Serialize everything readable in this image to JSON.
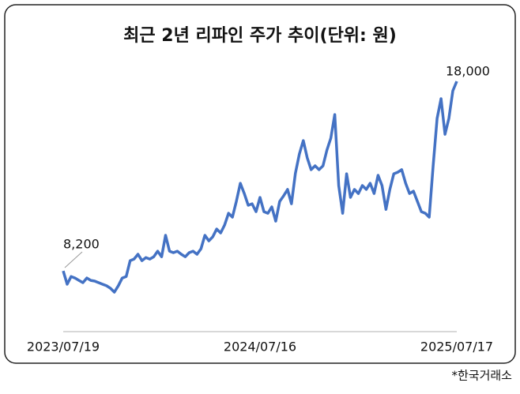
{
  "chart_data": {
    "type": "line",
    "title": "최근 2년 리파인 주가 추이(단위: 원)",
    "source": "*한국거래소",
    "color": "#4472c4",
    "categories": [
      "2023/07/19",
      null,
      null,
      null,
      null,
      null,
      null,
      null,
      null,
      null,
      null,
      null,
      null,
      null,
      null,
      null,
      null,
      null,
      null,
      null,
      null,
      null,
      null,
      null,
      null,
      null,
      null,
      null,
      null,
      null,
      null,
      null,
      null,
      null,
      null,
      null,
      null,
      null,
      null,
      null,
      null,
      null,
      null,
      null,
      null,
      null,
      null,
      null,
      null,
      null,
      "2024/07/16",
      null,
      null,
      null,
      null,
      null,
      null,
      null,
      null,
      null,
      null,
      null,
      null,
      null,
      null,
      null,
      null,
      null,
      null,
      null,
      null,
      null,
      null,
      null,
      null,
      null,
      null,
      null,
      null,
      null,
      null,
      null,
      null,
      null,
      null,
      null,
      null,
      null,
      null,
      null,
      null,
      null,
      null,
      null,
      null,
      null,
      null,
      null,
      null,
      null,
      "2025/07/17"
    ],
    "values": [
      8200,
      7510,
      7910,
      7830,
      7710,
      7590,
      7830,
      7710,
      7670,
      7590,
      7510,
      7430,
      7300,
      7100,
      7430,
      7830,
      7910,
      8730,
      8810,
      9060,
      8730,
      8890,
      8810,
      8930,
      9220,
      8930,
      10040,
      9220,
      9140,
      9220,
      9060,
      8930,
      9140,
      9220,
      9060,
      9340,
      10040,
      9750,
      9960,
      10360,
      10160,
      10570,
      11180,
      10980,
      11800,
      12730,
      12200,
      11590,
      11670,
      11260,
      12000,
      11260,
      11180,
      11510,
      10770,
      11790,
      12080,
      12410,
      11670,
      13250,
      14240,
      14940,
      14040,
      13430,
      13630,
      13430,
      13630,
      14450,
      15060,
      16280,
      12610,
      11180,
      13220,
      12000,
      12410,
      12200,
      12610,
      12410,
      12730,
      12200,
      13140,
      12610,
      11380,
      12410,
      13220,
      13300,
      13430,
      12730,
      12200,
      12320,
      11790,
      11260,
      11180,
      10980,
      13630,
      16080,
      17100,
      15260,
      16080,
      17510,
      18000
    ],
    "value_labels": [
      "8,200",
      null,
      null,
      null,
      null,
      null,
      null,
      null,
      null,
      null,
      null,
      null,
      null,
      null,
      null,
      null,
      null,
      null,
      null,
      null,
      null,
      null,
      null,
      null,
      null,
      null,
      null,
      null,
      null,
      null,
      null,
      null,
      null,
      null,
      null,
      null,
      null,
      null,
      null,
      null,
      null,
      null,
      null,
      null,
      null,
      null,
      null,
      null,
      null,
      null,
      null,
      null,
      null,
      null,
      null,
      null,
      null,
      null,
      null,
      null,
      null,
      null,
      null,
      null,
      null,
      null,
      null,
      null,
      null,
      null,
      null,
      null,
      null,
      null,
      null,
      null,
      null,
      null,
      null,
      null,
      null,
      null,
      null,
      null,
      null,
      null,
      null,
      null,
      null,
      null,
      null,
      null,
      null,
      null,
      null,
      null,
      null,
      null,
      null,
      null,
      "18,000"
    ]
  }
}
